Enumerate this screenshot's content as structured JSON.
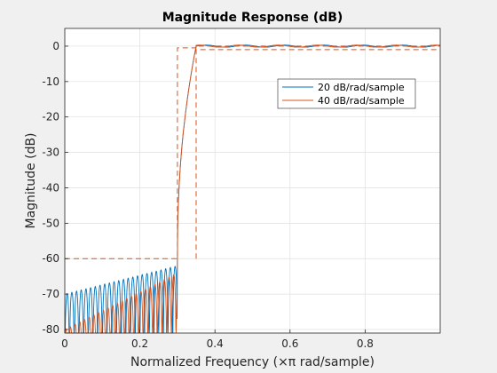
{
  "chart_data": {
    "type": "line",
    "title": "Magnitude Response (dB)",
    "xlabel": "Normalized Frequency (×π rad/sample)",
    "ylabel": "Magnitude (dB)",
    "xlim": [
      0,
      1
    ],
    "ylim": [
      -81,
      5
    ],
    "xticks": [
      0,
      0.2,
      0.4,
      0.6,
      0.8
    ],
    "xtick_labels": [
      "0",
      "0.2",
      "0.4",
      "0.6",
      "0.8"
    ],
    "yticks": [
      0,
      -10,
      -20,
      -30,
      -40,
      -50,
      -60,
      -70,
      -80
    ],
    "ytick_labels": [
      "0",
      "-10",
      "-20",
      "-30",
      "-40",
      "-50",
      "-60",
      "-70",
      "-80"
    ],
    "grid": true,
    "legend_position": "top-right",
    "series": [
      {
        "name": "20 dB/rad/sample",
        "color": "#0072BD",
        "style": "solid",
        "passband_edge": 0.35,
        "stopband_edge": 0.3,
        "ripple_start_db": -70,
        "ripple_end_db": -62,
        "lobe_count": 24
      },
      {
        "name": "40 dB/rad/sample",
        "color": "#D95319",
        "style": "solid",
        "passband_edge": 0.35,
        "stopband_edge": 0.3,
        "ripple_start_db": -80,
        "ripple_end_db": -64,
        "lobe_count": 24
      }
    ],
    "mask": {
      "color": "#D95319",
      "style": "dashed",
      "x": [
        0,
        0.3,
        0.3,
        0.35,
        0.35,
        1
      ],
      "y": [
        -60,
        -60,
        -0.5,
        -0.5,
        0,
        0
      ],
      "lower_x": [
        0.35,
        0.35,
        1
      ],
      "lower_y": [
        -60,
        -1,
        -1
      ]
    }
  }
}
